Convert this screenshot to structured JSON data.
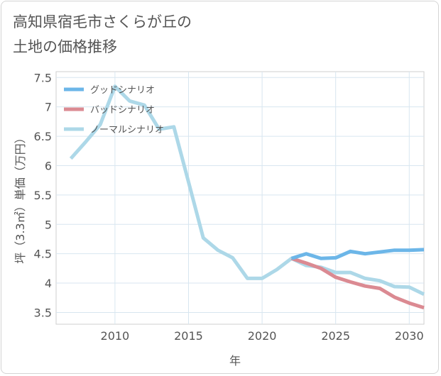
{
  "title_lines": [
    "高知県宿毛市さくらが丘の",
    "土地の価格推移"
  ],
  "chart_data": {
    "type": "line",
    "title": "高知県宿毛市さくらが丘の土地の価格推移",
    "xlabel": "年",
    "ylabel": "坪（3.3㎡）単価（万円）",
    "xlim": [
      2006,
      2031
    ],
    "ylim": [
      3.3,
      7.6
    ],
    "xticks": [
      2010,
      2015,
      2020,
      2025,
      2030
    ],
    "xtick_labels": [
      "2010",
      "2015",
      "2020",
      "2025",
      "2030"
    ],
    "yticks": [
      3.5,
      4,
      4.5,
      5,
      5.5,
      6,
      6.5,
      7,
      7.5
    ],
    "ytick_labels": [
      "3.5",
      "4",
      "4.5",
      "5",
      "5.5",
      "6",
      "6.5",
      "7",
      "7.5"
    ],
    "grid": true,
    "legend_position": "top-left",
    "series": [
      {
        "name": "グッドシナリオ",
        "color": "#6cb6e8",
        "x": [
          2022,
          2023,
          2024,
          2025,
          2026,
          2027,
          2028,
          2029,
          2030,
          2031
        ],
        "values": [
          4.42,
          4.5,
          4.42,
          4.43,
          4.54,
          4.5,
          4.53,
          4.56,
          4.56,
          4.57
        ]
      },
      {
        "name": "バッドシナリオ",
        "color": "#db8a92",
        "x": [
          2022,
          2023,
          2024,
          2025,
          2026,
          2027,
          2028,
          2029,
          2030,
          2031
        ],
        "values": [
          4.42,
          4.34,
          4.25,
          4.1,
          4.02,
          3.95,
          3.91,
          3.76,
          3.66,
          3.58
        ]
      },
      {
        "name": "ノーマルシナリオ",
        "color": "#add8e8",
        "x": [
          2007,
          2008,
          2009,
          2010,
          2011,
          2012,
          2013,
          2014,
          2015,
          2016,
          2017,
          2018,
          2019,
          2020,
          2021,
          2022,
          2023,
          2024,
          2025,
          2026,
          2027,
          2028,
          2029,
          2030,
          2031
        ],
        "values": [
          6.12,
          6.4,
          6.7,
          7.35,
          7.1,
          7.03,
          6.62,
          6.66,
          5.72,
          4.77,
          4.56,
          4.43,
          4.08,
          4.08,
          4.23,
          4.42,
          4.3,
          4.27,
          4.18,
          4.18,
          4.08,
          4.04,
          3.94,
          3.93,
          3.81
        ]
      }
    ]
  }
}
